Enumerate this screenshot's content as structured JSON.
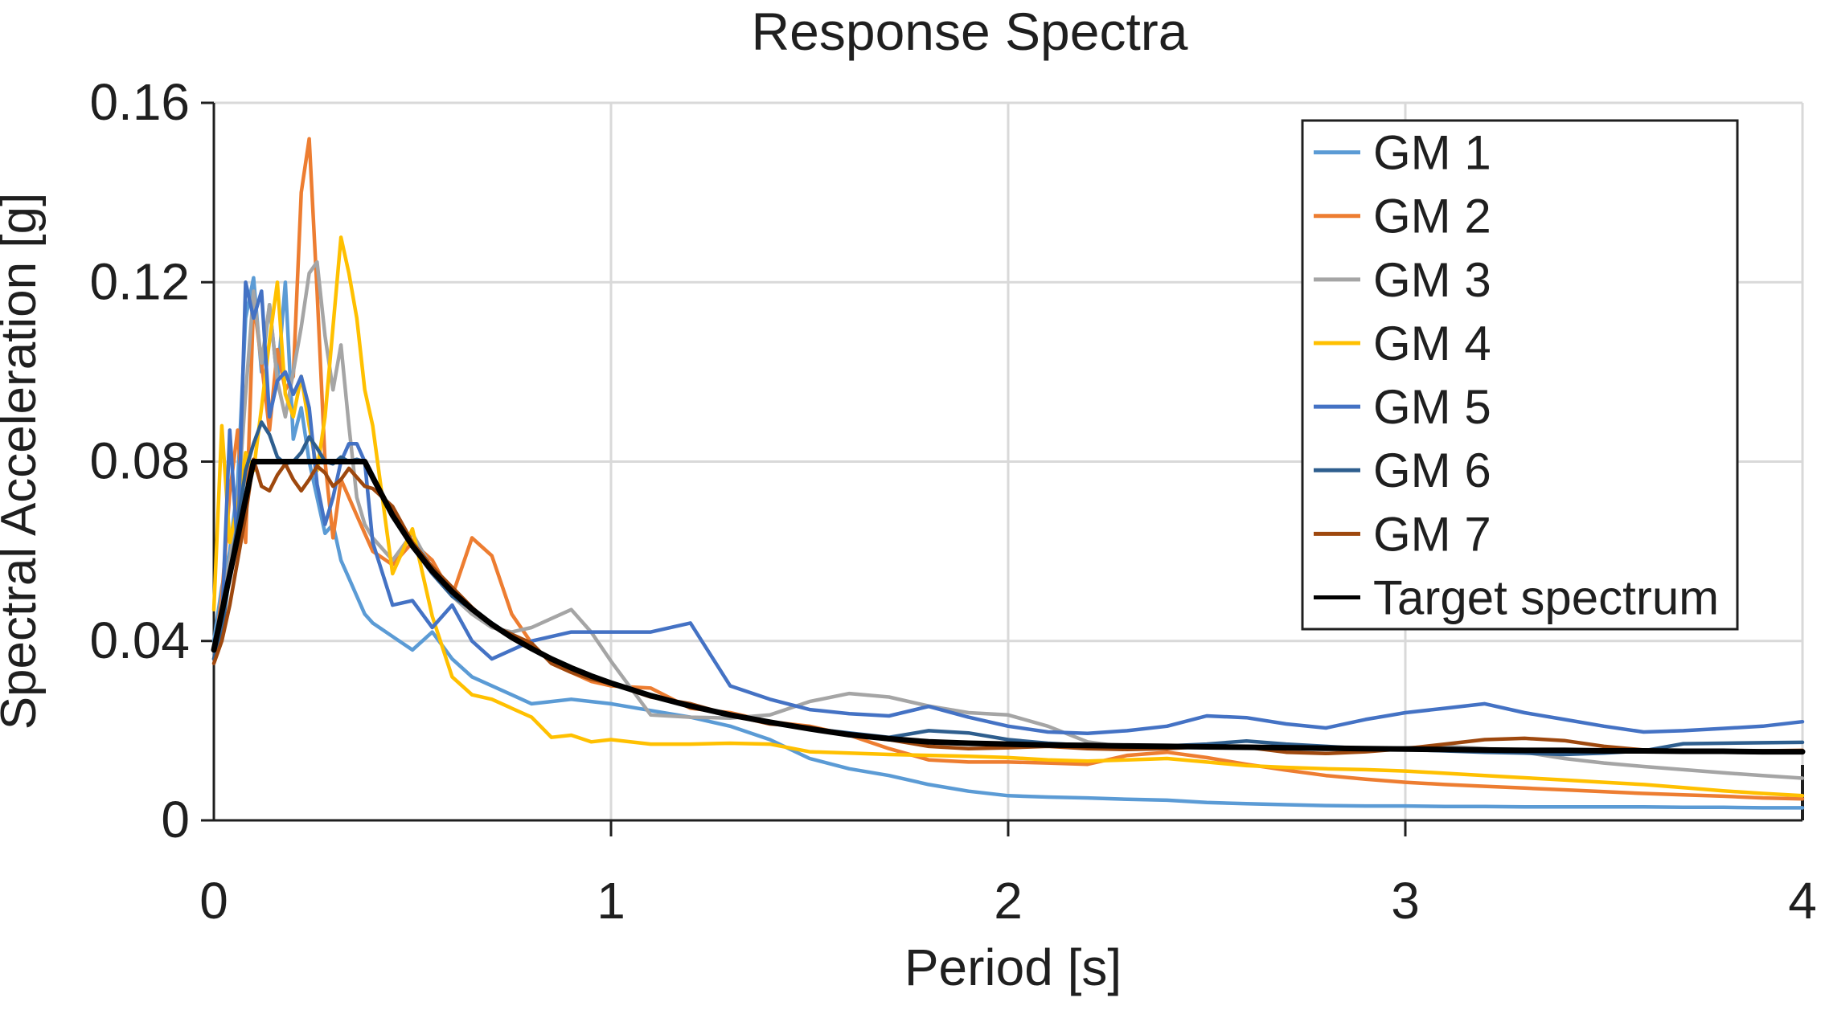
{
  "chart_data": {
    "type": "line",
    "title": "Response Spectra",
    "xlabel": "Period [s]",
    "ylabel": "Spectral Acceleration [g]",
    "xlim": [
      0,
      4
    ],
    "ylim": [
      0,
      0.16
    ],
    "xticks": [
      0,
      1,
      2,
      3,
      4
    ],
    "xtick_labels": [
      "0",
      "1",
      "2",
      "3",
      "4"
    ],
    "yticks": [
      0,
      0.04,
      0.08,
      0.12,
      0.16
    ],
    "ytick_labels": [
      "0",
      "0.04",
      "0.08",
      "0.12",
      "0.16"
    ],
    "grid": true,
    "legend_position": "inside-upper-right",
    "x": [
      0,
      0.02,
      0.04,
      0.06,
      0.08,
      0.1,
      0.12,
      0.14,
      0.16,
      0.18,
      0.2,
      0.22,
      0.24,
      0.26,
      0.28,
      0.3,
      0.32,
      0.34,
      0.36,
      0.38,
      0.4,
      0.45,
      0.5,
      0.55,
      0.6,
      0.65,
      0.7,
      0.75,
      0.8,
      0.85,
      0.9,
      0.95,
      1.0,
      1.1,
      1.2,
      1.3,
      1.4,
      1.5,
      1.6,
      1.7,
      1.8,
      1.9,
      2.0,
      2.1,
      2.2,
      2.3,
      2.4,
      2.5,
      2.6,
      2.7,
      2.8,
      2.9,
      3.0,
      3.1,
      3.2,
      3.3,
      3.4,
      3.5,
      3.6,
      3.7,
      3.8,
      3.9,
      4.0
    ],
    "series": [
      {
        "name": "GM 1",
        "color": "#5B9BD5",
        "width": 4.5,
        "values": [
          0.04,
          0.052,
          0.06,
          0.075,
          0.112,
          0.121,
          0.1,
          0.115,
          0.098,
          0.12,
          0.085,
          0.092,
          0.08,
          0.072,
          0.064,
          0.066,
          0.058,
          0.054,
          0.05,
          0.046,
          0.044,
          0.041,
          0.038,
          0.042,
          0.036,
          0.032,
          0.03,
          0.028,
          0.026,
          0.0265,
          0.027,
          0.0265,
          0.026,
          0.0245,
          0.023,
          0.021,
          0.018,
          0.0138,
          0.0115,
          0.01,
          0.008,
          0.0065,
          0.0055,
          0.0052,
          0.005,
          0.0047,
          0.0045,
          0.004,
          0.0037,
          0.0035,
          0.0033,
          0.0032,
          0.0032,
          0.0031,
          0.0031,
          0.003,
          0.003,
          0.003,
          0.003,
          0.0029,
          0.0029,
          0.0028,
          0.0028
        ]
      },
      {
        "name": "GM 2",
        "color": "#ED7D31",
        "width": 4.5,
        "values": [
          0.036,
          0.05,
          0.073,
          0.087,
          0.062,
          0.116,
          0.102,
          0.087,
          0.105,
          0.096,
          0.099,
          0.14,
          0.152,
          0.118,
          0.08,
          0.063,
          0.076,
          0.072,
          0.068,
          0.064,
          0.06,
          0.057,
          0.062,
          0.058,
          0.05,
          0.063,
          0.059,
          0.046,
          0.0395,
          0.035,
          0.033,
          0.031,
          0.03,
          0.0295,
          0.025,
          0.024,
          0.022,
          0.021,
          0.019,
          0.016,
          0.0135,
          0.013,
          0.013,
          0.0128,
          0.0125,
          0.0145,
          0.0152,
          0.014,
          0.0125,
          0.0112,
          0.01,
          0.0092,
          0.0085,
          0.008,
          0.0076,
          0.0072,
          0.0068,
          0.0064,
          0.006,
          0.0057,
          0.0054,
          0.005,
          0.0048
        ]
      },
      {
        "name": "GM 3",
        "color": "#A5A5A5",
        "width": 4.5,
        "values": [
          0.037,
          0.048,
          0.058,
          0.07,
          0.095,
          0.118,
          0.102,
          0.115,
          0.098,
          0.09,
          0.1,
          0.11,
          0.122,
          0.1245,
          0.108,
          0.096,
          0.106,
          0.088,
          0.072,
          0.066,
          0.063,
          0.058,
          0.064,
          0.056,
          0.05,
          0.046,
          0.043,
          0.042,
          0.043,
          0.045,
          0.047,
          0.042,
          0.0355,
          0.0235,
          0.023,
          0.0228,
          0.0235,
          0.0265,
          0.0283,
          0.0275,
          0.0255,
          0.024,
          0.0235,
          0.021,
          0.0175,
          0.0163,
          0.0162,
          0.0163,
          0.0165,
          0.016,
          0.0158,
          0.016,
          0.0162,
          0.0165,
          0.016,
          0.0152,
          0.0138,
          0.0128,
          0.012,
          0.0113,
          0.0106,
          0.01,
          0.0094
        ]
      },
      {
        "name": "GM 4",
        "color": "#FFC000",
        "width": 4.5,
        "values": [
          0.047,
          0.088,
          0.062,
          0.07,
          0.082,
          0.078,
          0.092,
          0.107,
          0.12,
          0.095,
          0.09,
          0.099,
          0.088,
          0.078,
          0.09,
          0.11,
          0.13,
          0.122,
          0.112,
          0.096,
          0.088,
          0.055,
          0.065,
          0.0455,
          0.032,
          0.028,
          0.027,
          0.025,
          0.023,
          0.0185,
          0.019,
          0.0175,
          0.018,
          0.017,
          0.017,
          0.0172,
          0.017,
          0.0153,
          0.015,
          0.0147,
          0.0145,
          0.0143,
          0.014,
          0.0135,
          0.0132,
          0.0135,
          0.0138,
          0.013,
          0.0122,
          0.0118,
          0.0115,
          0.0113,
          0.011,
          0.0105,
          0.01,
          0.0095,
          0.009,
          0.0085,
          0.008,
          0.0073,
          0.0066,
          0.006,
          0.0055
        ]
      },
      {
        "name": "GM 5",
        "color": "#4472C4",
        "width": 4.5,
        "values": [
          0.036,
          0.044,
          0.087,
          0.06,
          0.12,
          0.112,
          0.118,
          0.09,
          0.098,
          0.1,
          0.095,
          0.099,
          0.092,
          0.075,
          0.066,
          0.072,
          0.08,
          0.084,
          0.084,
          0.08,
          0.062,
          0.048,
          0.049,
          0.043,
          0.048,
          0.04,
          0.036,
          0.038,
          0.04,
          0.041,
          0.042,
          0.042,
          0.042,
          0.042,
          0.044,
          0.03,
          0.027,
          0.0247,
          0.0238,
          0.0233,
          0.0254,
          0.023,
          0.021,
          0.0197,
          0.0194,
          0.02,
          0.021,
          0.0233,
          0.0229,
          0.0215,
          0.0206,
          0.0225,
          0.024,
          0.025,
          0.026,
          0.024,
          0.0225,
          0.021,
          0.0197,
          0.02,
          0.0205,
          0.021,
          0.022
        ]
      },
      {
        "name": "GM 6",
        "color": "#2E5E8E",
        "width": 4.5,
        "values": [
          0.036,
          0.042,
          0.055,
          0.066,
          0.078,
          0.084,
          0.0888,
          0.086,
          0.081,
          0.0795,
          0.08,
          0.082,
          0.0855,
          0.083,
          0.08,
          0.0795,
          0.081,
          0.08,
          0.0805,
          0.08,
          0.076,
          0.068,
          0.061,
          0.055,
          0.05,
          0.047,
          0.044,
          0.041,
          0.0385,
          0.036,
          0.034,
          0.032,
          0.0305,
          0.028,
          0.0255,
          0.0235,
          0.022,
          0.0205,
          0.0195,
          0.0185,
          0.02,
          0.0195,
          0.018,
          0.0172,
          0.0167,
          0.0166,
          0.0166,
          0.017,
          0.0177,
          0.017,
          0.0165,
          0.016,
          0.0158,
          0.0155,
          0.0152,
          0.015,
          0.0147,
          0.015,
          0.0155,
          0.0171,
          0.0172,
          0.0173,
          0.0174
        ]
      },
      {
        "name": "GM 7",
        "color": "#9E480E",
        "width": 4.5,
        "values": [
          0.035,
          0.04,
          0.048,
          0.058,
          0.068,
          0.0805,
          0.0745,
          0.0735,
          0.077,
          0.0795,
          0.076,
          0.0735,
          0.076,
          0.079,
          0.0775,
          0.0745,
          0.076,
          0.0785,
          0.0765,
          0.0745,
          0.074,
          0.07,
          0.062,
          0.0565,
          0.052,
          0.0475,
          0.0435,
          0.0415,
          0.0395,
          0.035,
          0.033,
          0.0315,
          0.0305,
          0.0275,
          0.026,
          0.0235,
          0.0215,
          0.0208,
          0.019,
          0.018,
          0.0165,
          0.016,
          0.0162,
          0.0165,
          0.016,
          0.0158,
          0.016,
          0.0165,
          0.0163,
          0.0152,
          0.0149,
          0.0153,
          0.016,
          0.017,
          0.018,
          0.0183,
          0.0178,
          0.0165,
          0.0157,
          0.0155,
          0.0154,
          0.0155,
          0.0156
        ]
      },
      {
        "name": "Target spectrum",
        "color": "#000000",
        "width": 7,
        "values": [
          0.038,
          0.0464,
          0.0548,
          0.0632,
          0.0716,
          0.08,
          0.08,
          0.08,
          0.08,
          0.08,
          0.08,
          0.08,
          0.08,
          0.08,
          0.08,
          0.08,
          0.08,
          0.08,
          0.08,
          0.08,
          0.0765,
          0.068,
          0.0612,
          0.0556,
          0.051,
          0.0471,
          0.0437,
          0.0408,
          0.0383,
          0.036,
          0.034,
          0.0322,
          0.0306,
          0.0278,
          0.0255,
          0.0235,
          0.0219,
          0.0204,
          0.0191,
          0.0182,
          0.0175,
          0.0172,
          0.017,
          0.0168,
          0.0167,
          0.0166,
          0.0165,
          0.0164,
          0.0163,
          0.0162,
          0.0161,
          0.016,
          0.0159,
          0.0158,
          0.0157,
          0.0156,
          0.0156,
          0.0155,
          0.0155,
          0.0154,
          0.0154,
          0.0153,
          0.0153
        ]
      }
    ]
  },
  "colors": {
    "background": "#FFFFFF",
    "gridline": "#D9D9D9",
    "axis": "#1F1F1F",
    "text": "#1F1F1F"
  }
}
